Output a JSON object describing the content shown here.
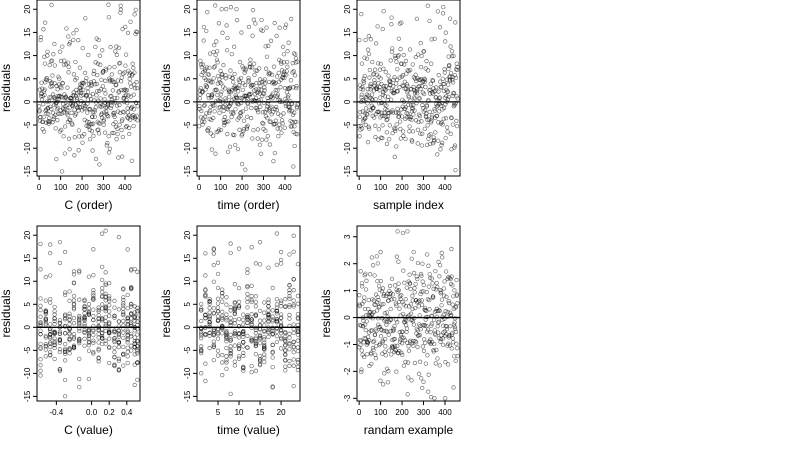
{
  "chart_data": [
    {
      "type": "scatter",
      "xlabel": "C (order)",
      "ylabel": "residuals",
      "xlim": [
        -10,
        470
      ],
      "ylim": [
        -16,
        22
      ],
      "xticks": [
        0,
        100,
        200,
        300,
        400
      ],
      "yticks": [
        -15,
        -10,
        -5,
        0,
        5,
        10,
        15,
        20
      ],
      "hline": 0,
      "pattern": "uniform",
      "n_points": 460,
      "seed": 11
    },
    {
      "type": "scatter",
      "xlabel": "time (order)",
      "ylabel": "residuals",
      "xlim": [
        -10,
        470
      ],
      "ylim": [
        -16,
        22
      ],
      "xticks": [
        0,
        100,
        200,
        300,
        400
      ],
      "yticks": [
        -15,
        -10,
        -5,
        0,
        5,
        10,
        15,
        20
      ],
      "hline": 0,
      "pattern": "uniform",
      "n_points": 460,
      "seed": 23
    },
    {
      "type": "scatter",
      "xlabel": "sample index",
      "ylabel": "residuals",
      "xlim": [
        -10,
        470
      ],
      "ylim": [
        -16,
        22
      ],
      "xticks": [
        0,
        100,
        200,
        300,
        400
      ],
      "yticks": [
        -15,
        -10,
        -5,
        0,
        5,
        10,
        15,
        20
      ],
      "hline": 0,
      "pattern": "uniform",
      "n_points": 460,
      "seed": 37
    },
    {
      "type": "scatter",
      "xlabel": "C (value)",
      "ylabel": "residuals",
      "xlim": [
        -0.62,
        0.55
      ],
      "ylim": [
        -16,
        22
      ],
      "xticks": [
        -0.4,
        0.0,
        0.2,
        0.4
      ],
      "xtick_labels": [
        "-0.4",
        "0.0",
        "0.2",
        "0.4"
      ],
      "yticks": [
        -15,
        -10,
        -5,
        0,
        5,
        10,
        15,
        20
      ],
      "hline": 0,
      "pattern": "columns",
      "columns": [
        -0.58,
        -0.52,
        -0.47,
        -0.42,
        -0.36,
        -0.3,
        -0.25,
        -0.2,
        -0.14,
        -0.08,
        -0.03,
        0.02,
        0.08,
        0.12,
        0.16,
        0.2,
        0.26,
        0.31,
        0.36,
        0.41,
        0.45,
        0.49,
        0.52
      ],
      "seed": 53
    },
    {
      "type": "scatter",
      "xlabel": "time (value)",
      "ylabel": "residuals",
      "xlim": [
        0,
        24.5
      ],
      "ylim": [
        -16,
        22
      ],
      "xticks": [
        5,
        10,
        15,
        20
      ],
      "yticks": [
        -15,
        -10,
        -5,
        0,
        5,
        10,
        15,
        20
      ],
      "hline": 0,
      "pattern": "columns",
      "columns": [
        1,
        2,
        3,
        4,
        5,
        6,
        7,
        8,
        9,
        10,
        11,
        12,
        13,
        14,
        15,
        16,
        17,
        18,
        19,
        20,
        21,
        22,
        23,
        24
      ],
      "seed": 71
    },
    {
      "type": "scatter",
      "xlabel": "randam example",
      "ylabel": "residuals",
      "xlim": [
        -10,
        470
      ],
      "ylim": [
        -3.1,
        3.4
      ],
      "xticks": [
        0,
        100,
        200,
        300,
        400
      ],
      "yticks": [
        -3,
        -2,
        -1,
        0,
        1,
        2,
        3
      ],
      "hline": 0,
      "pattern": "normal",
      "n_points": 460,
      "seed": 89
    }
  ]
}
